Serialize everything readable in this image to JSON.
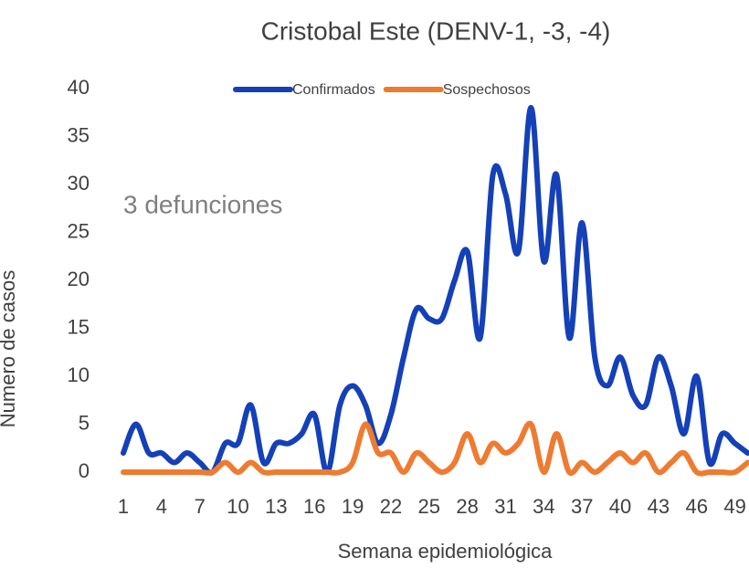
{
  "chart_data": {
    "type": "line",
    "title": "Cristobal Este (DENV-1, -3, -4)",
    "x_label": "Semana epidemiológica",
    "y_label": "Numero de casos",
    "annotation": "3 defunciones",
    "categories": [
      1,
      null,
      null,
      4,
      null,
      null,
      7,
      null,
      null,
      10,
      null,
      null,
      13,
      null,
      null,
      16,
      null,
      null,
      19,
      null,
      null,
      22,
      null,
      null,
      25,
      null,
      null,
      28,
      null,
      null,
      31,
      null,
      null,
      34,
      null,
      null,
      37,
      null,
      null,
      40,
      null,
      null,
      43,
      null,
      null,
      46,
      null,
      null,
      49,
      null
    ],
    "series": [
      {
        "name": "Confirmados",
        "color": "#1440b8",
        "values": [
          2,
          5,
          2,
          2,
          1,
          2,
          1,
          0,
          3,
          3,
          7,
          1,
          3,
          3,
          4,
          6,
          0,
          7,
          9,
          7,
          3,
          6,
          12,
          17,
          16,
          16,
          20,
          23,
          14,
          31,
          29,
          23,
          38,
          22,
          31,
          14,
          26,
          12,
          9,
          12,
          8,
          7,
          12,
          9,
          4,
          10,
          1,
          4,
          3,
          2
        ]
      },
      {
        "name": "Sospechosos",
        "color": "#ee7b30",
        "values": [
          0,
          0,
          0,
          0,
          0,
          0,
          0,
          0,
          1,
          0,
          1,
          0,
          0,
          0,
          0,
          0,
          0,
          0,
          1,
          5,
          2,
          2,
          0,
          2,
          1,
          0,
          1,
          4,
          1,
          3,
          2,
          3,
          5,
          0,
          4,
          0,
          1,
          0,
          1,
          2,
          1,
          2,
          0,
          1,
          2,
          0,
          0,
          0,
          0,
          1
        ]
      }
    ],
    "ylim": [
      0,
      40
    ],
    "yticks": [
      0,
      5,
      10,
      15,
      20,
      25,
      30,
      35,
      40
    ],
    "grid": false,
    "legend": "top"
  }
}
